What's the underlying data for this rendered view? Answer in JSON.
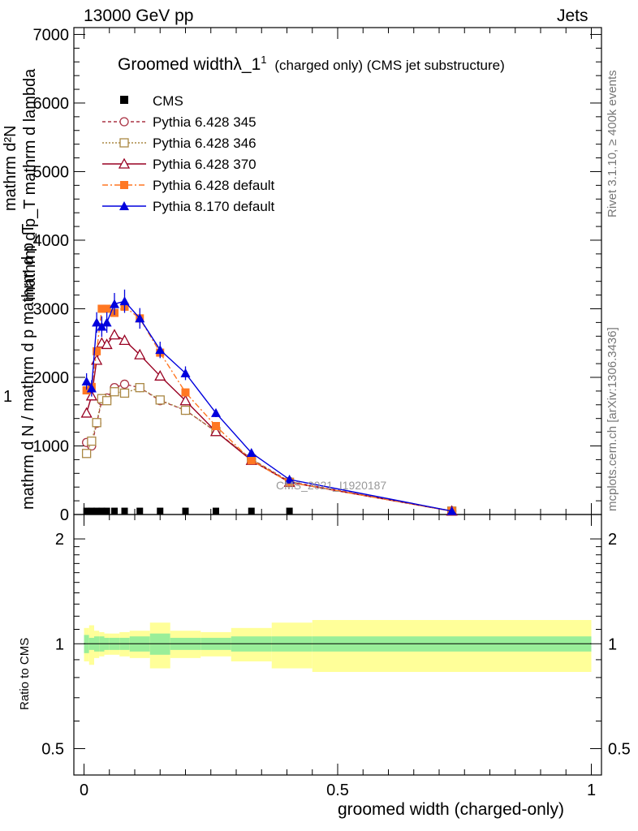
{
  "header": {
    "left": "13000 GeV pp",
    "right": "Jets"
  },
  "side": {
    "rivet": "Rivet 3.1.10, ≥ 400k events",
    "mcplots": "mcplots.cern.ch [arXiv:1306.3436]"
  },
  "watermark": "CMS_2021_I1920187",
  "chart_data": [
    {
      "type": "line",
      "title": "Groomed widthλ_1",
      "title_sup": "1",
      "title_suffix": "(charged only) (CMS jet substructure)",
      "ylabel_top": "mathrm d²N",
      "ylabel_top_sub": "mathrm d p_T mathrm d lambda",
      "ylabel_bottom": "mathrm d N / mathrm d p mathrm d p_T",
      "ylabel_one": "1",
      "xlim": [
        -0.02,
        1.02
      ],
      "ylim": [
        0,
        7100
      ],
      "yticks": [
        {
          "v": 0,
          "label": "0"
        },
        {
          "v": 1000,
          "label": "1000"
        },
        {
          "v": 2000,
          "label": "2000"
        },
        {
          "v": 3000,
          "label": "3000"
        },
        {
          "v": 4000,
          "label": "4000"
        },
        {
          "v": 5000,
          "label": "5000"
        },
        {
          "v": 6000,
          "label": "6000"
        },
        {
          "v": 7000,
          "label": "7000"
        }
      ],
      "legend": "top-left",
      "series": [
        {
          "name": "CMS",
          "color": "#000000",
          "marker": "square-filled",
          "x": [
            0.005,
            0.015,
            0.025,
            0.035,
            0.045,
            0.06,
            0.08,
            0.11,
            0.15,
            0.2,
            0.26,
            0.33,
            0.405
          ],
          "y": [
            5,
            5,
            5,
            5,
            5,
            5,
            5,
            5,
            5,
            5,
            5,
            5,
            5
          ]
        },
        {
          "name": "Pythia 6.428 345",
          "color": "#aa3344",
          "dash": "4,3",
          "marker": "circle-open",
          "x": [
            0.005,
            0.015,
            0.025,
            0.035,
            0.045,
            0.06,
            0.08,
            0.11,
            0.15,
            0.2,
            0.26,
            0.33,
            0.405,
            0.725
          ],
          "y": [
            1050,
            1000,
            1330,
            1660,
            1700,
            1850,
            1900,
            1850,
            1660,
            1520,
            1210,
            810,
            480,
            50
          ]
        },
        {
          "name": "Pythia 6.428 346",
          "color": "#aa8844",
          "dash": "2,2",
          "marker": "square-open",
          "x": [
            0.005,
            0.015,
            0.025,
            0.035,
            0.045,
            0.06,
            0.08,
            0.11,
            0.15,
            0.2,
            0.26,
            0.33,
            0.405,
            0.725
          ],
          "y": [
            890,
            1070,
            1340,
            1690,
            1660,
            1790,
            1770,
            1850,
            1670,
            1520,
            1210,
            810,
            470,
            50
          ]
        },
        {
          "name": "Pythia 6.428 370",
          "color": "#990022",
          "dash": "",
          "marker": "triangle-open",
          "x": [
            0.005,
            0.015,
            0.025,
            0.035,
            0.045,
            0.06,
            0.08,
            0.11,
            0.15,
            0.2,
            0.26,
            0.33,
            0.405,
            0.725
          ],
          "y": [
            1480,
            1730,
            2250,
            2500,
            2480,
            2620,
            2540,
            2330,
            2020,
            1660,
            1210,
            790,
            470,
            50
          ]
        },
        {
          "name": "Pythia 6.428 default",
          "color": "#ff7722",
          "dash": "7,3,2,3",
          "marker": "square-filled",
          "x": [
            0.005,
            0.015,
            0.025,
            0.035,
            0.045,
            0.06,
            0.08,
            0.11,
            0.15,
            0.2,
            0.26,
            0.33,
            0.405,
            0.725
          ],
          "y": [
            1810,
            1860,
            2380,
            3000,
            3000,
            2940,
            3030,
            2860,
            2360,
            1780,
            1290,
            790,
            470,
            50
          ]
        },
        {
          "name": "Pythia 8.170 default",
          "color": "#0000dd",
          "dash": "",
          "marker": "triangle-filled",
          "x": [
            0.005,
            0.015,
            0.025,
            0.035,
            0.045,
            0.06,
            0.08,
            0.11,
            0.15,
            0.2,
            0.26,
            0.33,
            0.405,
            0.725
          ],
          "y": [
            1940,
            1840,
            2800,
            2740,
            2800,
            3070,
            3110,
            2860,
            2400,
            2060,
            1480,
            900,
            510,
            50
          ],
          "yerr": [
            120,
            120,
            150,
            150,
            150,
            160,
            170,
            150,
            120,
            100,
            60,
            50,
            30,
            10
          ]
        }
      ]
    },
    {
      "type": "area",
      "ylabel": "Ratio to CMS",
      "xlabel": "groomed width (charged-only)",
      "xlim": [
        -0.02,
        1.02
      ],
      "ylim": [
        0.42,
        2.35
      ],
      "log_y": true,
      "yticks": [
        {
          "v": 0.5,
          "label": "0.5"
        },
        {
          "v": 1,
          "label": "1"
        },
        {
          "v": 2,
          "label": "2"
        }
      ],
      "xticks": [
        {
          "v": 0,
          "label": "0"
        },
        {
          "v": 0.5,
          "label": "0.5"
        },
        {
          "v": 1,
          "label": "1"
        }
      ],
      "bins": [
        0,
        0.01,
        0.02,
        0.03,
        0.04,
        0.05,
        0.07,
        0.09,
        0.13,
        0.17,
        0.23,
        0.29,
        0.37,
        0.45,
        1.0
      ],
      "band_inner": [
        0.06,
        0.04,
        0.05,
        0.05,
        0.04,
        0.04,
        0.04,
        0.05,
        0.07,
        0.04,
        0.04,
        0.05,
        0.05,
        0.05
      ],
      "band_outer": [
        0.11,
        0.13,
        0.09,
        0.08,
        0.07,
        0.07,
        0.08,
        0.09,
        0.15,
        0.09,
        0.08,
        0.11,
        0.15,
        0.17
      ],
      "inner_color": "#99ee99",
      "outer_color": "#ffff99"
    }
  ]
}
